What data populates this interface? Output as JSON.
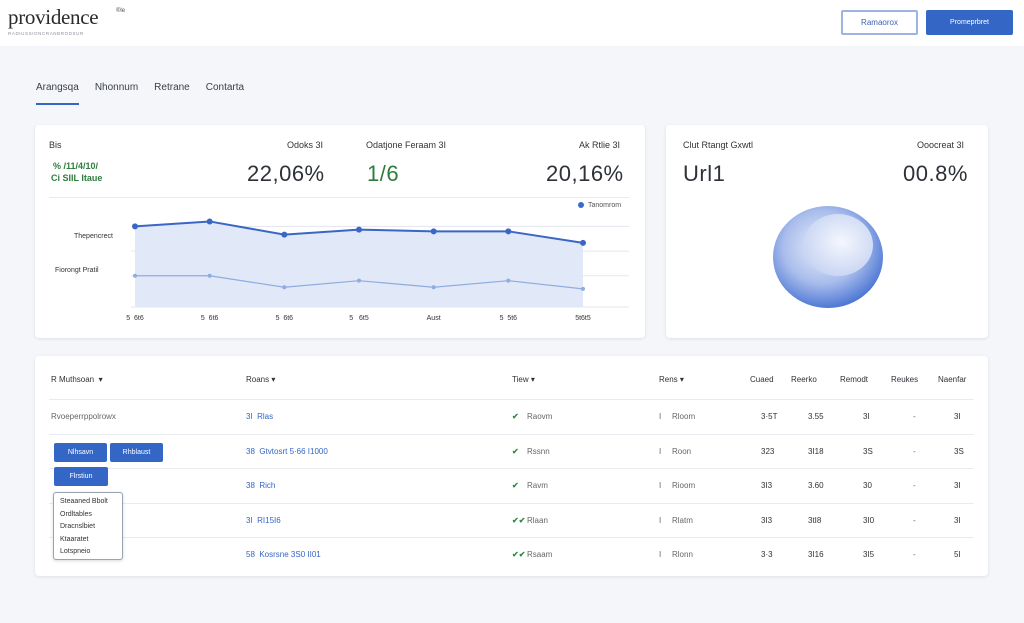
{
  "header": {
    "logo_name": "providence",
    "logo_sup": "®le",
    "logo_tagline": "RADIUSSIONCRANBRODSUR",
    "btn_outline": "Ramaorox",
    "btn_primary": "Promeprbret"
  },
  "tabs": [
    "Arangsqa",
    "Nhonnum",
    "Retrane",
    "Contarta"
  ],
  "kpi": {
    "label_left": "Bis",
    "label_small_green_1": "% /11/4/10/",
    "label_small_green_2": "Ci SIIL Itaue",
    "label_mid": "Odoks 3I",
    "big_mid": "22,06%",
    "label_center": "Odatjone Feraam 3I",
    "big_center_green": "1/6",
    "label_right": "Ak Rtlie 3I",
    "big_right": "20,16%",
    "legend": "Tanomrom",
    "y_label_1": "Thepencrect",
    "y_label_2": "Fiorongt Pratil"
  },
  "chart_data": {
    "type": "area",
    "categories": [
      "5  6t6",
      "5  6t6",
      "5  6t6",
      "5   6t5",
      "Aust",
      "5  5t6",
      "5t6t5"
    ],
    "series": [
      {
        "name": "Tanomrom",
        "values": [
          49,
          52,
          44,
          47,
          46,
          46,
          39
        ]
      },
      {
        "values": [
          19,
          19,
          12,
          16,
          12,
          16,
          11
        ]
      }
    ],
    "ylim": [
      0,
      62
    ]
  },
  "pie": {
    "label_left": "Clut Rtangt Gxwtl",
    "label_right": "Ooocreat 3I",
    "big_left": "Url1",
    "big_right": "00.8%"
  },
  "table": {
    "headers": {
      "c1": "R Muthsoan  ▾",
      "c2": "Roans ▾",
      "c3": "Tiew ▾",
      "c4": "Rens ▾",
      "c5": "Cuaed",
      "c6": "Reerko",
      "c7": "Remodt",
      "c8": "Reukes",
      "c9": "Naenfar"
    },
    "rows": [
      {
        "c1": "Rvoeperrppolrowx",
        "c2": "3I  Rlas",
        "c3": "Raovm",
        "c4": "Rloom",
        "c5": "3·5T",
        "c6": "3.55",
        "c7": "3I",
        "c8": "-",
        "c9": "3I"
      },
      {
        "c1": "",
        "c2": "38  Gtvtosrt 5·66 I1000",
        "c3": "Rssnn",
        "c4": "Roon",
        "c5": "323",
        "c6": "3I18",
        "c7": "3S",
        "c8": "-",
        "c9": "3S"
      },
      {
        "c1": "",
        "c2": "38  Rich",
        "c3": "Ravm",
        "c4": "Rioom",
        "c5": "3I3",
        "c6": "3.60",
        "c7": "30",
        "c8": "-",
        "c9": "3I"
      },
      {
        "c1": "",
        "c2": "3I  RI15I6",
        "c3": "Rlaan",
        "c4": "Rlatm",
        "c5": "3I3",
        "c6": "3tI8",
        "c7": "3I0",
        "c8": "-",
        "c9": "3I"
      },
      {
        "c1": "",
        "c2": "58  Kosrsne 3S0 II01",
        "c3": "Rsaam",
        "c4": "Rlonn",
        "c5": "3·3",
        "c6": "3I16",
        "c7": "3I5",
        "c8": "-",
        "c9": "5I"
      }
    ],
    "row_checks": [
      "✔",
      "✔",
      "✔",
      "✔✔",
      "✔✔"
    ],
    "row_hashes": [
      "I",
      "I",
      "I",
      "I",
      "I"
    ]
  },
  "mini_buttons": [
    "Nlhsavn",
    "Rhblaust",
    "Flrstiun"
  ],
  "dropdown_items": [
    "Steaaned Bbolt",
    "Ordltables",
    "Dracnslbiet",
    "Ktaaratet",
    "Lotspneio"
  ]
}
